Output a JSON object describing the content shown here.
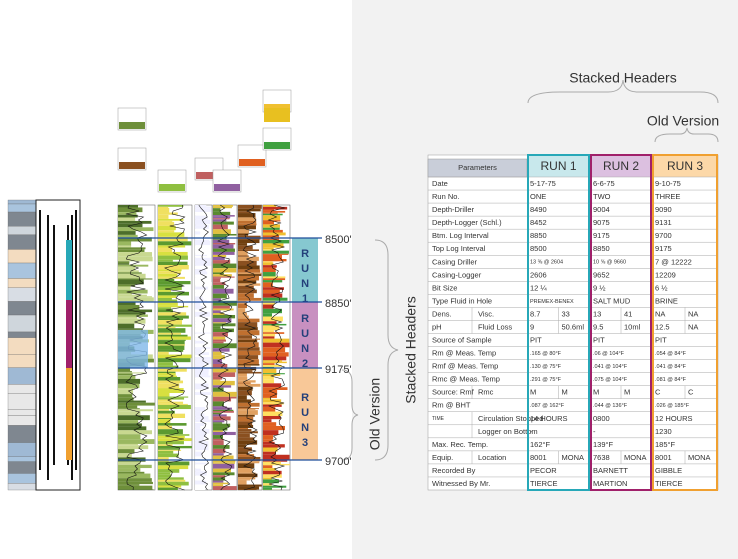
{
  "annotations": {
    "stacked_headers": "Stacked Headers",
    "old_version": "Old Version"
  },
  "log": {
    "depths": [
      "8500'",
      "8850'",
      "9175'",
      "9700'"
    ],
    "runs": [
      "RUN1",
      "RUN2",
      "RUN3"
    ]
  },
  "table": {
    "headers": [
      "Parameters",
      "RUN 1",
      "RUN 2",
      "RUN 3"
    ],
    "rows": [
      {
        "label": "Date",
        "values": [
          "5-17-75",
          "6-6-75",
          "9-10-75"
        ]
      },
      {
        "label": "Run No.",
        "values": [
          "ONE",
          "TWO",
          "THREE"
        ]
      },
      {
        "label": "Depth-Driller",
        "values": [
          "8490",
          "9004",
          "9090"
        ]
      },
      {
        "label": "Depth-Logger (Schl.)",
        "values": [
          "8452",
          "9075",
          "9131"
        ]
      },
      {
        "label": "Btm. Log Interval",
        "values": [
          "8850",
          "9175",
          "9700"
        ]
      },
      {
        "label": "Top Log Interval",
        "values": [
          "8500",
          "8850",
          "9175"
        ]
      },
      {
        "label": "Casing Driller",
        "values": [
          "13 ⅜ @ 2604",
          "10 ⅝ @ 9660",
          "7 @ 12222"
        ]
      },
      {
        "label": "Casing-Logger",
        "values": [
          "2606",
          "9652",
          "12209"
        ]
      },
      {
        "label": "Bit Size",
        "values": [
          "12 ¼",
          "9 ½",
          "6 ½"
        ]
      },
      {
        "label": "Type Fluid in Hole",
        "values": [
          "PREMEX-BENEX",
          "SALT MUD",
          "BRINE"
        ]
      },
      {
        "label": "Dens.",
        "sub": "Visc.",
        "values": [
          "8.7",
          "33",
          "13",
          "41",
          "NA",
          "NA"
        ]
      },
      {
        "label": "pH",
        "sub": "Fluid Loss",
        "values": [
          "9",
          "50.6ml",
          "9.5",
          "10ml",
          "12.5",
          "NA"
        ]
      },
      {
        "label": "Source of Sample",
        "values": [
          "PIT",
          "PIT",
          "PIT"
        ]
      },
      {
        "label": "Rm @ Meas. Temp",
        "values": [
          ".165 @ 80°F",
          ".06 @ 104°F",
          ".054 @ 84°F"
        ]
      },
      {
        "label": "Rmf @ Meas. Temp",
        "values": [
          ".130 @ 75°F",
          ".041 @ 104°F",
          ".041 @ 84°F"
        ]
      },
      {
        "label": "Rmc @ Meas. Temp",
        "values": [
          ".291 @ 75°F",
          ".075 @ 104°F",
          ".081 @ 84°F"
        ]
      },
      {
        "label": "Source: Rmf",
        "sub": "Rmc",
        "values": [
          "M",
          "M",
          "M",
          "M",
          "C",
          "C"
        ]
      },
      {
        "label": "Rm @ BHT",
        "values": [
          ".087 @ 162°F",
          ".044 @ 136°F",
          ".026 @ 185°F"
        ]
      },
      {
        "label": "TIME",
        "sub": "Circulation Stopped",
        "values": [
          "14 HOURS",
          "0800",
          "12 HOURS"
        ]
      },
      {
        "sub": "Logger on Bottom",
        "values": [
          "-",
          "-",
          "1230"
        ]
      },
      {
        "label": "Max. Rec. Temp.",
        "values": [
          "162°F",
          "139°F",
          "185°F"
        ]
      },
      {
        "label": "Equip.",
        "sub": "Location",
        "values": [
          "8001",
          "MONA",
          "7638",
          "MONA",
          "8001",
          "MONA"
        ]
      },
      {
        "label": "Recorded By",
        "values": [
          "PECOR",
          "BARNETT",
          "GIBBLE"
        ]
      },
      {
        "label": "Witnessed By Mr.",
        "values": [
          "TIERCE",
          "MARTION",
          "TIERCE"
        ]
      }
    ]
  }
}
